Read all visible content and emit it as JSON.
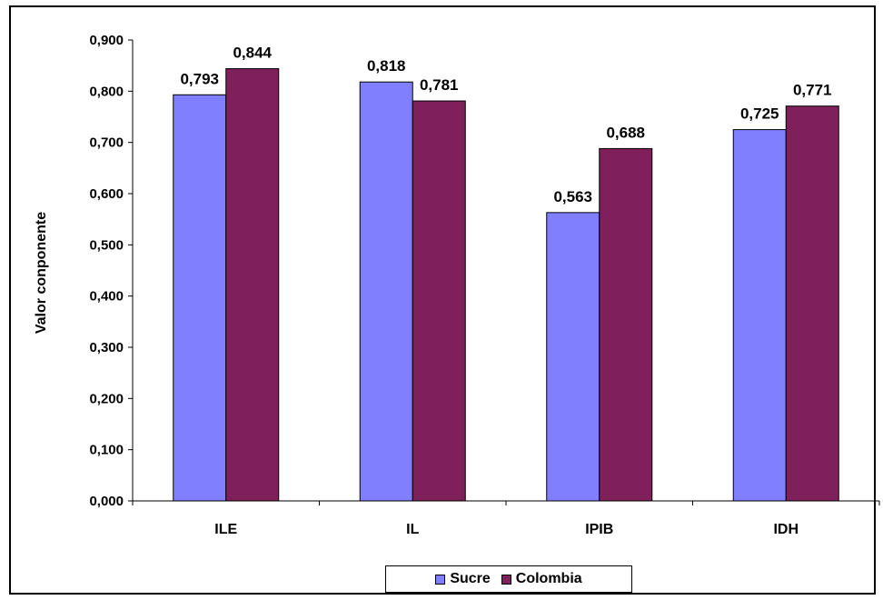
{
  "chart_data": {
    "type": "bar",
    "categories": [
      "ILE",
      "IL",
      "IPIB",
      "IDH"
    ],
    "series": [
      {
        "name": "Sucre",
        "values": [
          0.793,
          0.818,
          0.563,
          0.725
        ],
        "labels": [
          "0,793",
          "0,818",
          "0,563",
          "0,725"
        ],
        "color": "#8080ff"
      },
      {
        "name": "Colombia",
        "values": [
          0.844,
          0.781,
          0.688,
          0.771
        ],
        "labels": [
          "0,844",
          "0,781",
          "0,688",
          "0,771"
        ],
        "color": "#80205a"
      }
    ],
    "ylabel": "Valor conponente",
    "xlabel": "",
    "ylim": [
      0,
      0.9
    ],
    "yticks": [
      0,
      0.1,
      0.2,
      0.3,
      0.4,
      0.5,
      0.6,
      0.7,
      0.8,
      0.9
    ],
    "ytick_labels": [
      "0,000",
      "0,100",
      "0,200",
      "0,300",
      "0,400",
      "0,500",
      "0,600",
      "0,700",
      "0,800",
      "0,900"
    ],
    "grid": false,
    "legend_position": "bottom"
  }
}
